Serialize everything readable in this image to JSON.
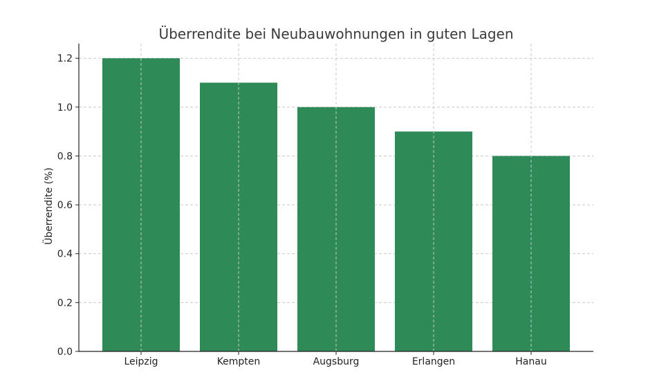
{
  "chart_data": {
    "type": "bar",
    "title": "Überrendite bei Neubauwohnungen in guten Lagen",
    "xlabel": "",
    "ylabel": "Überrendite (%)",
    "categories": [
      "Leipzig",
      "Kempten",
      "Augsburg",
      "Erlangen",
      "Hanau"
    ],
    "values": [
      1.2,
      1.1,
      1.0,
      0.9,
      0.8
    ],
    "ylim": [
      0,
      1.26
    ],
    "yticks": [
      "0.0",
      "0.2",
      "0.4",
      "0.6",
      "0.8",
      "1.0",
      "1.2"
    ],
    "grid": true,
    "bar_color": "#2e8b57"
  }
}
